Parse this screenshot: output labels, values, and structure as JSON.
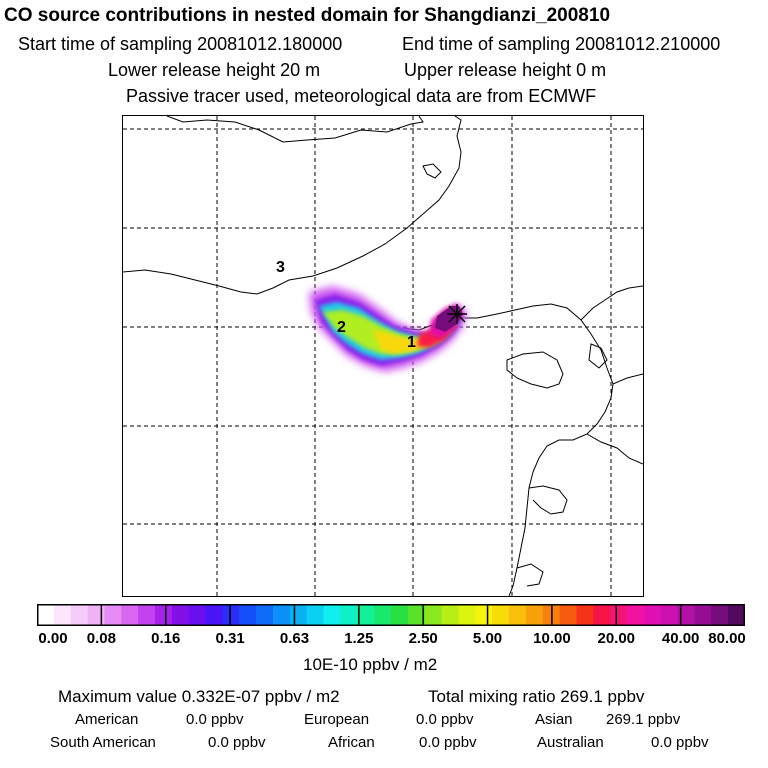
{
  "header": {
    "title": "CO  source contributions in nested domain for Shangdianzi_200810",
    "start_time": "Start time of sampling 20081012.180000",
    "end_time": "End time of sampling 20081012.210000",
    "lower_release": "Lower release height   20 m",
    "upper_release": "Upper release height    0 m",
    "passive_tracer": "Passive tracer used, meteorological data are from ECMWF"
  },
  "map": {
    "labels": [
      "3",
      "2",
      "1"
    ],
    "receptor_marker": "receptor-x-icon"
  },
  "colorbar": {
    "tick_labels": [
      "0.00",
      "0.08",
      "0.16",
      "0.31",
      "0.63",
      "1.25",
      "2.50",
      "5.00",
      "10.00",
      "20.00",
      "40.00",
      "80.00"
    ],
    "unit": "10E-10 ppbv / m2",
    "colors": [
      "#ffffff",
      "#fbe6fc",
      "#f6cdf9",
      "#f0b2f7",
      "#e68cf4",
      "#d967f1",
      "#c341ee",
      "#a522ec",
      "#8410e8",
      "#6a10f0",
      "#4a14f5",
      "#2c2ef8",
      "#1450f8",
      "#0e6ef7",
      "#0a90f6",
      "#0ab0f4",
      "#0ad0f2",
      "#10eef0",
      "#10f0c6",
      "#14f09a",
      "#1ae86c",
      "#28e042",
      "#5ae22a",
      "#8ae81e",
      "#b6ee16",
      "#dcf410",
      "#f6f40c",
      "#f8dc0a",
      "#f8c00a",
      "#f8a00a",
      "#f8800c",
      "#f85c10",
      "#f63218",
      "#f41446",
      "#f41478",
      "#f012a0",
      "#e010b4",
      "#ce10b0",
      "#b210a6",
      "#940e94",
      "#740c7c",
      "#520a5e"
    ]
  },
  "summary": {
    "max_value": "Maximum value  0.332E-07 ppbv / m2",
    "total_mixing": "Total mixing ratio      269.1 ppbv",
    "regions": [
      {
        "name": "American",
        "value": "0.0 ppbv"
      },
      {
        "name": "European",
        "value": "0.0 ppbv"
      },
      {
        "name": "Asian",
        "value": "269.1 ppbv"
      },
      {
        "name": "South American",
        "value": "0.0 ppbv"
      },
      {
        "name": "African",
        "value": "0.0 ppbv"
      },
      {
        "name": "Australian",
        "value": "0.0 ppbv"
      }
    ]
  }
}
